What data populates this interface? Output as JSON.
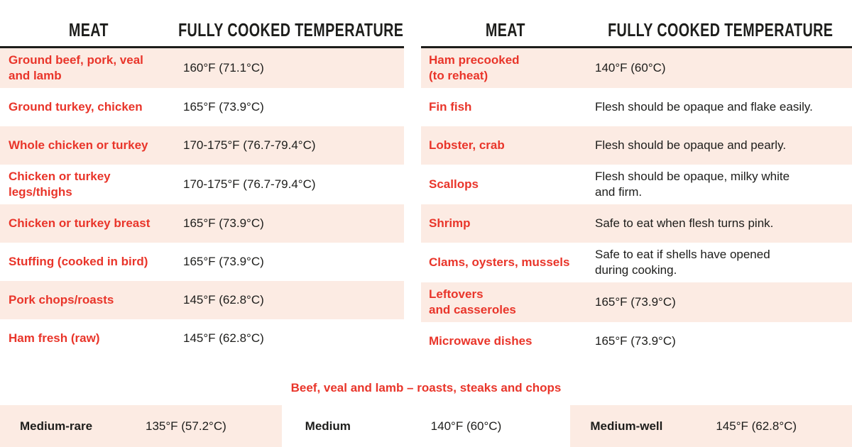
{
  "colors": {
    "accent_red": "#e9352a",
    "row_pink": "#fcebe3",
    "text_dark": "#1d1d1b"
  },
  "chart_data": [
    {
      "type": "table",
      "id": "meat-temperatures-left",
      "headers": {
        "meat": "MEAT",
        "temp": "FULLY COOKED TEMPERATURE"
      },
      "rows": [
        {
          "meat": "Ground beef, pork, veal\nand lamb",
          "temp": "160°F (71.1°C)"
        },
        {
          "meat": "Ground turkey, chicken",
          "temp": "165°F (73.9°C)"
        },
        {
          "meat": "Whole chicken or turkey",
          "temp": "170-175°F (76.7-79.4°C)"
        },
        {
          "meat": "Chicken or turkey\nlegs/thighs",
          "temp": "170-175°F (76.7-79.4°C)"
        },
        {
          "meat": "Chicken or turkey breast",
          "temp": "165°F (73.9°C)"
        },
        {
          "meat": "Stuffing (cooked in bird)",
          "temp": "165°F (73.9°C)"
        },
        {
          "meat": "Pork chops/roasts",
          "temp": "145°F (62.8°C)"
        },
        {
          "meat": "Ham fresh (raw)",
          "temp": "145°F (62.8°C)"
        }
      ]
    },
    {
      "type": "table",
      "id": "meat-temperatures-right",
      "headers": {
        "meat": "MEAT",
        "temp": "FULLY COOKED TEMPERATURE"
      },
      "rows": [
        {
          "meat": "Ham precooked\n(to reheat)",
          "temp": "140°F (60°C)"
        },
        {
          "meat": "Fin fish",
          "temp": "Flesh should be opaque and flake easily."
        },
        {
          "meat": "Lobster, crab",
          "temp": "Flesh should be opaque and pearly."
        },
        {
          "meat": "Scallops",
          "temp": "Flesh should be opaque, milky white\nand firm."
        },
        {
          "meat": "Shrimp",
          "temp": "Safe to eat when flesh turns pink."
        },
        {
          "meat": "Clams, oysters, mussels",
          "temp": "Safe to eat if shells have opened\nduring cooking."
        },
        {
          "meat": "Leftovers\nand casseroles",
          "temp": "165°F (73.9°C)"
        },
        {
          "meat": "Microwave dishes",
          "temp": "165°F (73.9°C)"
        }
      ]
    },
    {
      "type": "table",
      "id": "beef-doneness",
      "title": "Beef, veal and lamb – roasts, steaks and chops",
      "rows": [
        {
          "label": "Medium-rare",
          "temp": "135°F (57.2°C)",
          "shaded": true
        },
        {
          "label": "Medium",
          "temp": "140°F (60°C)",
          "shaded": false
        },
        {
          "label": "Medium-well",
          "temp": "145°F (62.8°C)",
          "shaded": true
        }
      ]
    }
  ]
}
